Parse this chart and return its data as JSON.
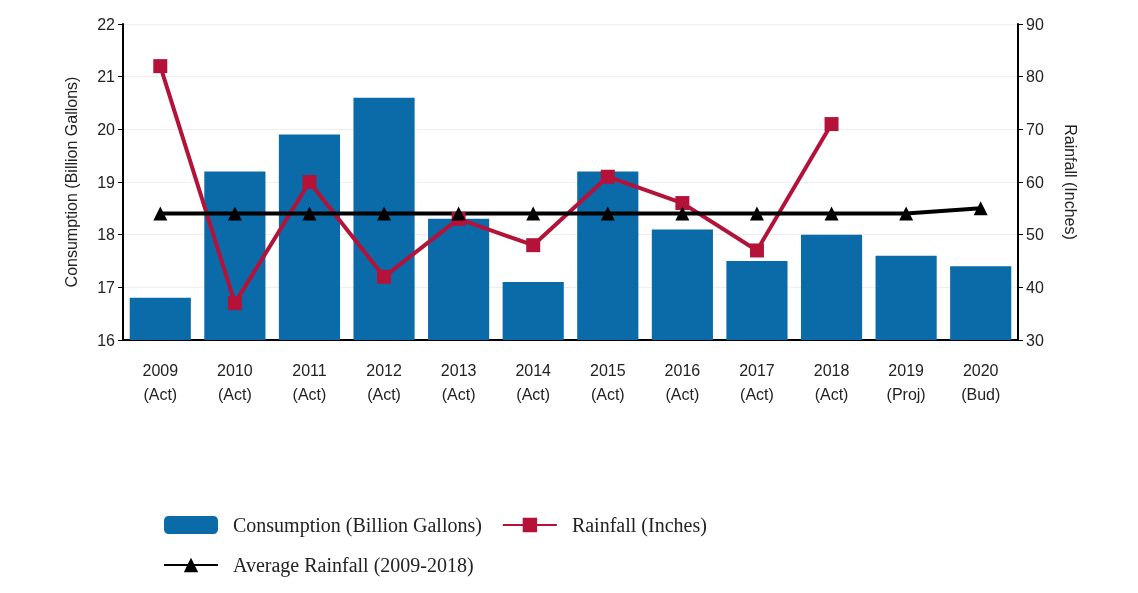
{
  "chart_data": {
    "type": "bar",
    "categories": [
      "2009\n(Act)",
      "2010\n(Act)",
      "2011\n(Act)",
      "2012\n(Act)",
      "2013\n(Act)",
      "2014\n(Act)",
      "2015\n(Act)",
      "2016\n(Act)",
      "2017\n(Act)",
      "2018\n(Act)",
      "2019\n(Proj)",
      "2020\n(Bud)"
    ],
    "series": [
      {
        "name": "Consumption (Billion Gallons)",
        "color": "#0b6aa8",
        "values": [
          16.8,
          19.2,
          19.9,
          20.6,
          18.3,
          17.1,
          19.2,
          18.1,
          17.5,
          18.0,
          17.6,
          17.4
        ]
      },
      {
        "name": "Rainfall (Inches)",
        "type": "line",
        "axis": "y2",
        "marker": "square",
        "color": "#b5123a",
        "values": [
          82,
          37,
          60,
          42,
          53,
          48,
          61,
          56,
          47,
          71,
          null,
          null
        ]
      },
      {
        "name": "Average Rainfall (2009-2018)",
        "type": "line",
        "axis": "y2",
        "marker": "triangle",
        "color": "#000000",
        "values": [
          54,
          54,
          54,
          54,
          54,
          54,
          54,
          54,
          54,
          54,
          54,
          55
        ]
      }
    ],
    "ylabel": "Consumption (Billion Gallons)",
    "y2label": "Rainfall (Inches)",
    "ylim": [
      16,
      22
    ],
    "yticks": [
      16,
      17,
      18,
      19,
      20,
      21,
      22
    ],
    "y2lim": [
      30,
      90
    ],
    "y2ticks": [
      30,
      40,
      50,
      60,
      70,
      80,
      90
    ],
    "grid": "y",
    "legend": "bottom"
  }
}
